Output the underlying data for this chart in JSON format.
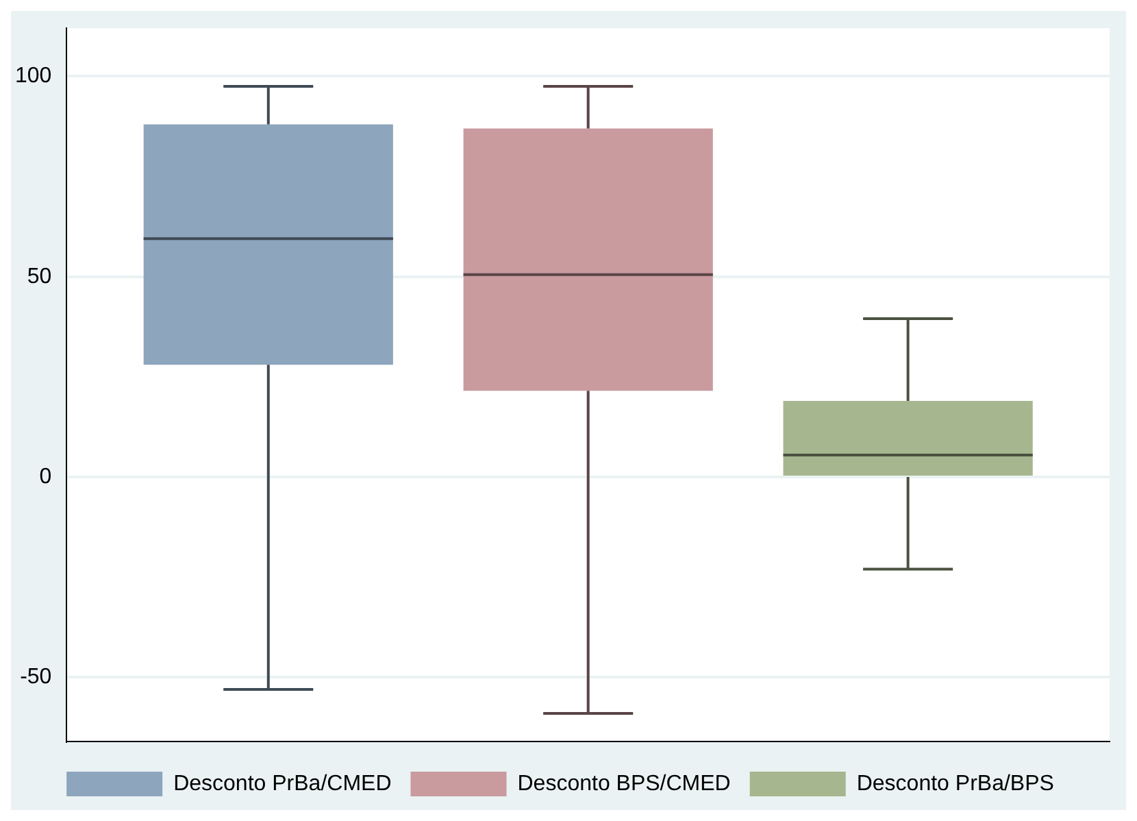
{
  "chart_data": {
    "type": "box",
    "categories": [
      null
    ],
    "series": [
      {
        "name": "Desconto PrBa/CMED",
        "color": "#8da5bd",
        "boxes": [
          {
            "low": -53,
            "q1": 28,
            "median": 59.5,
            "q3": 88,
            "high": 97.5
          }
        ]
      },
      {
        "name": "Desconto BPS/CMED",
        "color": "#c99a9e",
        "boxes": [
          {
            "low": -59,
            "q1": 21.5,
            "median": 50.5,
            "q3": 87,
            "high": 97.5
          }
        ]
      },
      {
        "name": "Desconto PrBa/BPS",
        "color": "#a6b68e",
        "boxes": [
          {
            "low": -23,
            "q1": 0,
            "median": 5.5,
            "q3": 19,
            "high": 39.5
          }
        ]
      }
    ],
    "ylim": [
      -66,
      112
    ],
    "yticks": [
      -50,
      0,
      50,
      100
    ],
    "grid": "y",
    "legend": "bottom",
    "tick_labels": "y"
  }
}
